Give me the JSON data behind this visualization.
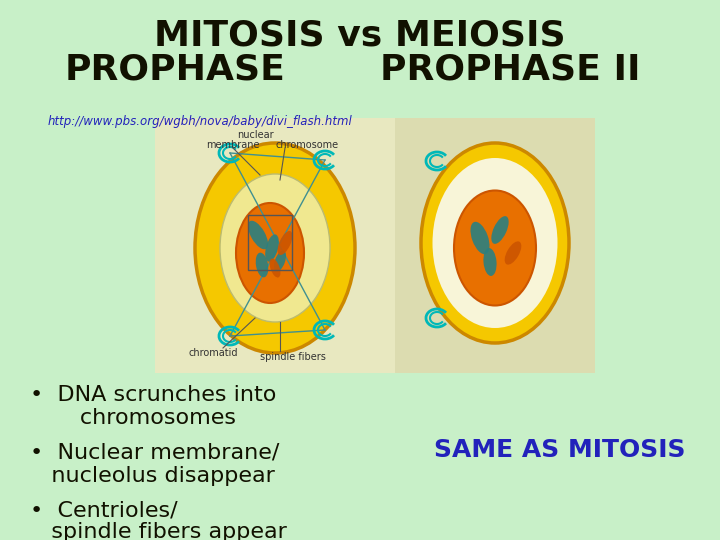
{
  "background_color": "#c8f0c8",
  "title_line1": "MITOSIS vs MEIOSIS",
  "title_line2_left": "PROPHASE",
  "title_line2_right": "PROPHASE II",
  "title_color": "#111100",
  "title_fontsize": 26,
  "title_bold": true,
  "url_text": "http://www.pbs.org/wgbh/nova/baby/divi_flash.html",
  "url_color": "#2222bb",
  "url_fontsize": 8.5,
  "bullet_color": "#111100",
  "bullet_fontsize": 16,
  "same_as_text": "SAME AS MITOSIS",
  "same_as_color": "#2222bb",
  "same_as_fontsize": 18,
  "left_panel_color": "#e8e8c0",
  "right_panel_color": "#dcdcb0",
  "cell_outer_color": "#f5c800",
  "cell_outer_edge": "#cc8800",
  "cell_nuc_light": "#f0e890",
  "cell_nucleus_color": "#e87000",
  "cell_nucleus_edge": "#cc5500",
  "chrom_teal": "#2a8080",
  "chrom_orange": "#cc5500",
  "centriole_color": "#00b8b8",
  "label_color": "#333333",
  "line_color": "#555555"
}
